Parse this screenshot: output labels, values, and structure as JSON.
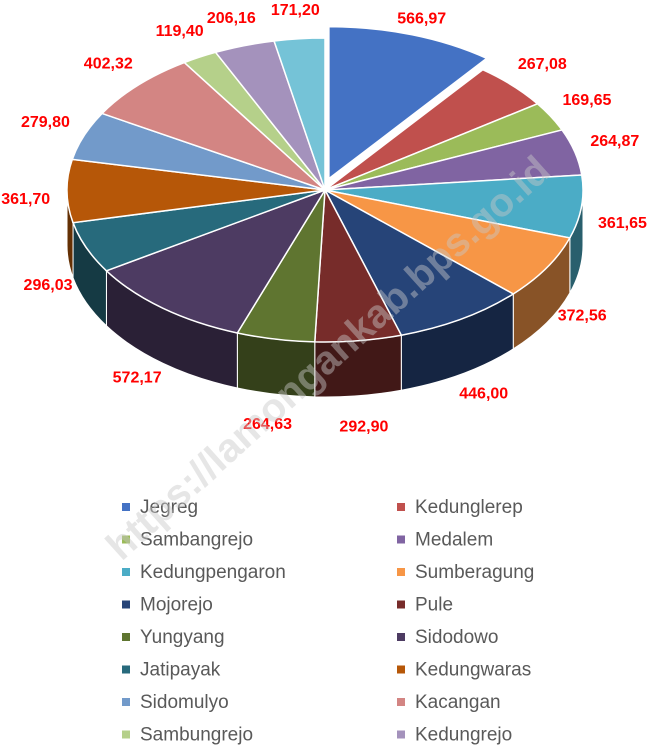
{
  "chart_data": {
    "type": "pie3d",
    "watermark": "https://lamongankab.bps.go.id",
    "categories": [
      "Jegreg",
      "Kedunglerep",
      "Sambangrejo",
      "Medalem",
      "Kedungpengaron",
      "Sumberagung",
      "Mojorejo",
      "Pule",
      "Yungyang",
      "Sidodowo",
      "Jatipayak",
      "Kedungwaras",
      "Sidomulyo",
      "Kacangan",
      "Sambungrejo",
      "Kedungrejo",
      null
    ],
    "values": [
      566.97,
      267.08,
      169.65,
      264.87,
      361.65,
      372.56,
      446.0,
      292.9,
      264.63,
      572.17,
      296.03,
      361.7,
      279.8,
      402.32,
      119.4,
      206.16,
      171.2
    ],
    "value_labels": [
      "566,97",
      "267,08",
      "169,65",
      "264,87",
      "361,65",
      "372,56",
      "446,00",
      "292,90",
      "264,63",
      "572,17",
      "296,03",
      "361,70",
      "279,80",
      "402,32",
      "119,40",
      "206,16",
      "171,20"
    ],
    "colors": [
      "#4472c4",
      "#c0504d",
      "#9bbb59",
      "#8064a2",
      "#4bacc6",
      "#f79646",
      "#264478",
      "#772c2a",
      "#5f7530",
      "#4d3b62",
      "#276a7c",
      "#b65708",
      "#729aca",
      "#d38583",
      "#b5d08a",
      "#a492bc",
      "#75c3d7"
    ],
    "exploded": [
      0
    ],
    "legend": "bottom"
  }
}
